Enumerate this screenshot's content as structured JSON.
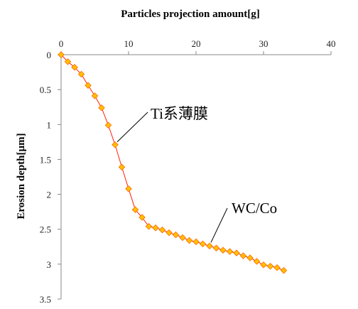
{
  "chart_data": {
    "type": "scatter",
    "xlabel": "Particles projection amount[g]",
    "ylabel": "Erosion depth[µm]",
    "xlim": [
      0,
      40
    ],
    "ylim": [
      0,
      3.5
    ],
    "x_axis_position": "top",
    "y_axis_inverted": true,
    "x_ticks": [
      "0",
      "10",
      "20",
      "30",
      "40"
    ],
    "y_ticks": [
      "0",
      "0.5",
      "1",
      "1.5",
      "2",
      "2.5",
      "3",
      "3.5"
    ],
    "grid": false,
    "series": [
      {
        "marker": "diamond",
        "line": true,
        "points": [
          {
            "x": 0,
            "y": 0.0
          },
          {
            "x": 1,
            "y": 0.1
          },
          {
            "x": 2,
            "y": 0.18
          },
          {
            "x": 3,
            "y": 0.28
          },
          {
            "x": 4,
            "y": 0.44
          },
          {
            "x": 5,
            "y": 0.59
          },
          {
            "x": 6,
            "y": 0.76
          },
          {
            "x": 7,
            "y": 1.01
          },
          {
            "x": 8,
            "y": 1.29
          },
          {
            "x": 9,
            "y": 1.61
          },
          {
            "x": 10,
            "y": 1.92
          },
          {
            "x": 11,
            "y": 2.22
          },
          {
            "x": 12,
            "y": 2.33
          },
          {
            "x": 13,
            "y": 2.46
          },
          {
            "x": 14,
            "y": 2.48
          },
          {
            "x": 15,
            "y": 2.51
          },
          {
            "x": 16,
            "y": 2.55
          },
          {
            "x": 17,
            "y": 2.58
          },
          {
            "x": 18,
            "y": 2.62
          },
          {
            "x": 19,
            "y": 2.66
          },
          {
            "x": 20,
            "y": 2.68
          },
          {
            "x": 21,
            "y": 2.71
          },
          {
            "x": 22,
            "y": 2.74
          },
          {
            "x": 23,
            "y": 2.77
          },
          {
            "x": 24,
            "y": 2.8
          },
          {
            "x": 25,
            "y": 2.82
          },
          {
            "x": 26,
            "y": 2.84
          },
          {
            "x": 27,
            "y": 2.88
          },
          {
            "x": 28,
            "y": 2.91
          },
          {
            "x": 29,
            "y": 2.96
          },
          {
            "x": 30,
            "y": 3.01
          },
          {
            "x": 31,
            "y": 3.03
          },
          {
            "x": 32,
            "y": 3.05
          },
          {
            "x": 33,
            "y": 3.09
          }
        ]
      }
    ],
    "annotations": [
      {
        "text": "Ti系薄膜",
        "x": 8,
        "y": 1.29
      },
      {
        "text": "WC/Co",
        "x": 22,
        "y": 2.74
      }
    ]
  },
  "colors": {
    "line": "#ff2200",
    "marker_fill": "#ffc000",
    "marker_stroke": "#ff6a00",
    "axis": "#888888"
  }
}
